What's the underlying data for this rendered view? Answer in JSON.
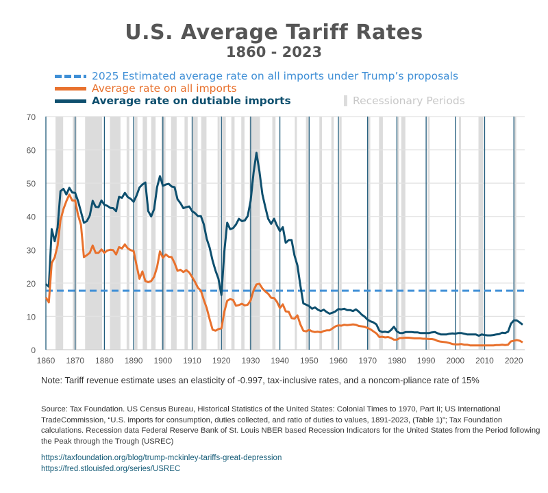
{
  "chart_data": {
    "type": "line",
    "title": "U.S. Average Tariff Rates",
    "subtitle": "1860 - 2023",
    "xlim": [
      1860,
      2023
    ],
    "ylim": [
      0,
      70
    ],
    "x_ticks": [
      1860,
      1870,
      1880,
      1890,
      1900,
      1910,
      1920,
      1930,
      1940,
      1950,
      1960,
      1970,
      1980,
      1990,
      2000,
      2010,
      2020
    ],
    "y_ticks": [
      0,
      10,
      20,
      30,
      40,
      50,
      60,
      70
    ],
    "grid": true,
    "legend_placement": "top",
    "colors": {
      "estimate": "#3f8fd6",
      "all": "#e8712d",
      "dutiable": "#0e4f6e",
      "recession": "#dcdcdc",
      "decade_lines": "#1f5a7a"
    },
    "estimate": {
      "name": "2025 Estimated average rate on all imports under Trump’s proposals",
      "value": 17.7
    },
    "recession_label": "Recessionary Periods",
    "recessions": [
      [
        1863.3,
        1865.9
      ],
      [
        1869.2,
        1870.5
      ],
      [
        1873.4,
        1879.2
      ],
      [
        1881.9,
        1885.5
      ],
      [
        1887.6,
        1888.5
      ],
      [
        1890.3,
        1891.3
      ],
      [
        1893.1,
        1894.6
      ],
      [
        1896,
        1897.5
      ],
      [
        1899.5,
        1900.9
      ],
      [
        1902.8,
        1904.7
      ],
      [
        1907.4,
        1908.5
      ],
      [
        1910.1,
        1911.9
      ],
      [
        1913.1,
        1914.9
      ],
      [
        1918.7,
        1919.2
      ],
      [
        1920.1,
        1921.5
      ],
      [
        1923.4,
        1924.5
      ],
      [
        1926.8,
        1927.9
      ],
      [
        1929.6,
        1933.2
      ],
      [
        1937.4,
        1938.5
      ],
      [
        1945.1,
        1945.8
      ],
      [
        1948.9,
        1949.8
      ],
      [
        1953.5,
        1954.4
      ],
      [
        1957.6,
        1958.4
      ],
      [
        1960.3,
        1961.1
      ],
      [
        1969.9,
        1970.9
      ],
      [
        1973.9,
        1975.2
      ],
      [
        1980,
        1980.6
      ],
      [
        1981.5,
        1982.9
      ],
      [
        1990.5,
        1991.2
      ],
      [
        2001.2,
        2001.9
      ],
      [
        2007.9,
        2009.5
      ],
      [
        2020.1,
        2020.4
      ]
    ],
    "years_start": 1860,
    "series": [
      {
        "name": "Average rate on dutiable imports",
        "values": [
          19.7,
          18.9,
          36.2,
          32.6,
          36.7,
          47.6,
          48.3,
          46.6,
          48.6,
          47.2,
          47.1,
          44.6,
          41.4,
          38.1,
          38.6,
          40.3,
          44.7,
          42.9,
          42.8,
          44.8,
          43.5,
          43.2,
          42.6,
          42.5,
          41.6,
          45.9,
          45.6,
          47.1,
          45.8,
          45.3,
          44.4,
          46.3,
          48.7,
          49.6,
          50.2,
          41.6,
          40.0,
          42.2,
          48.8,
          52.1,
          49.2,
          49.6,
          49.8,
          49.0,
          48.8,
          45.2,
          44.0,
          42.5,
          42.8,
          43.0,
          41.6,
          41.0,
          40.1,
          40.1,
          37.6,
          33.3,
          30.6,
          26.7,
          23.7,
          21.3,
          16.4,
          29.5,
          38.1,
          36.2,
          36.5,
          37.6,
          39.3,
          38.6,
          38.8,
          40.1,
          44.7,
          53.2,
          59.1,
          53.6,
          46.7,
          42.9,
          39.3,
          37.8,
          39.3,
          37.3,
          35.6,
          36.8,
          32.1,
          32.9,
          32.9,
          28.3,
          25.3,
          19.3,
          13.9,
          13.5,
          13.1,
          12.3,
          12.7,
          12.0,
          11.6,
          12.0,
          11.3,
          10.8,
          11.1,
          11.5,
          12.2,
          12.1,
          12.3,
          11.9,
          11.9,
          11.6,
          12.1,
          11.4,
          10.5,
          9.9,
          9.0,
          8.5,
          8.2,
          7.6,
          5.7,
          5.3,
          5.4,
          5.2,
          5.9,
          6.9,
          5.5,
          5.0,
          5.0,
          5.3,
          5.3,
          5.3,
          5.2,
          5.2,
          5.0,
          5.0,
          5.0,
          5.0,
          5.2,
          5.3,
          4.9,
          4.6,
          4.6,
          4.6,
          4.8,
          4.9,
          4.8,
          5.0,
          5.0,
          4.8,
          4.6,
          4.6,
          4.6,
          4.6,
          4.2,
          4.6,
          4.4,
          4.3,
          4.3,
          4.4,
          4.6,
          4.7,
          5.1,
          5.0,
          5.4,
          7.8,
          8.8,
          8.8,
          8.2,
          7.5
        ]
      },
      {
        "name": "Average rate on all imports",
        "values": [
          15.7,
          14.2,
          26.0,
          27.7,
          31.3,
          38.9,
          42.2,
          44.6,
          46.6,
          44.8,
          44.8,
          40.4,
          37.5,
          27.8,
          28.4,
          29.1,
          31.3,
          29.1,
          29.1,
          30.1,
          29.1,
          29.8,
          30.0,
          29.9,
          28.6,
          30.8,
          30.4,
          31.6,
          30.4,
          29.9,
          29.6,
          25.3,
          21.3,
          23.5,
          20.6,
          20.3,
          20.6,
          21.9,
          24.8,
          29.5,
          27.6,
          28.6,
          27.9,
          27.8,
          26.0,
          23.7,
          24.0,
          23.3,
          23.9,
          23.2,
          21.8,
          20.3,
          18.6,
          17.7,
          14.9,
          12.5,
          9.1,
          6.0,
          5.7,
          6.2,
          6.4,
          11.4,
          14.7,
          15.2,
          14.9,
          13.2,
          13.4,
          13.8,
          13.3,
          13.5,
          14.8,
          17.8,
          19.6,
          19.8,
          18.4,
          17.5,
          16.8,
          15.6,
          15.5,
          14.4,
          12.5,
          13.6,
          11.5,
          11.4,
          9.5,
          9.3,
          10.3,
          7.6,
          5.7,
          5.5,
          6.0,
          5.5,
          5.3,
          5.4,
          5.2,
          5.6,
          5.8,
          5.8,
          6.4,
          7.0,
          7.3,
          7.2,
          7.5,
          7.4,
          7.5,
          7.6,
          7.5,
          7.1,
          7.0,
          6.9,
          6.5,
          6.1,
          5.5,
          4.9,
          3.8,
          3.9,
          3.7,
          3.8,
          3.5,
          3.0,
          3.0,
          3.5,
          3.5,
          3.6,
          3.6,
          3.5,
          3.4,
          3.4,
          3.4,
          3.3,
          3.3,
          3.2,
          3.2,
          3.0,
          2.6,
          2.4,
          2.3,
          2.2,
          2.0,
          1.7,
          1.6,
          1.6,
          1.7,
          1.5,
          1.5,
          1.3,
          1.3,
          1.3,
          1.3,
          1.3,
          1.3,
          1.3,
          1.3,
          1.3,
          1.4,
          1.4,
          1.5,
          1.4,
          1.5,
          2.5,
          2.7,
          2.9,
          2.7,
          2.2
        ]
      }
    ]
  },
  "legend": {
    "estimate": "2025 Estimated average rate on all imports under Trump’s proposals",
    "all": "Average rate on all imports",
    "dutiable": "Average rate on dutiable imports",
    "recession": "Recessionary Periods"
  },
  "note": "Note: Tariff revenue estimate uses an elasticity of -0.997, tax-inclusive rates, and a noncom-pliance rate of 15%",
  "source": "Source: Tax Foundation. US Census Bureau, Historical Statistics of the United States: Colonial Times to 1970, Part II; US International TradeCommission, “U.S. imports for consumption, duties collected, and ratio of duties to values, 1891-2023, (Table 1)”; Tax Foundation calculations. Recession data Federal Reserve Bank of St. Louis NBER based Recession Indicators for the United States from the Period following the Peak through the Trough (USREC)",
  "links": [
    "https://taxfoundation.org/blog/trump-mckinley-tariffs-great-depression",
    "https://fred.stlouisfed.org/series/USREC"
  ]
}
